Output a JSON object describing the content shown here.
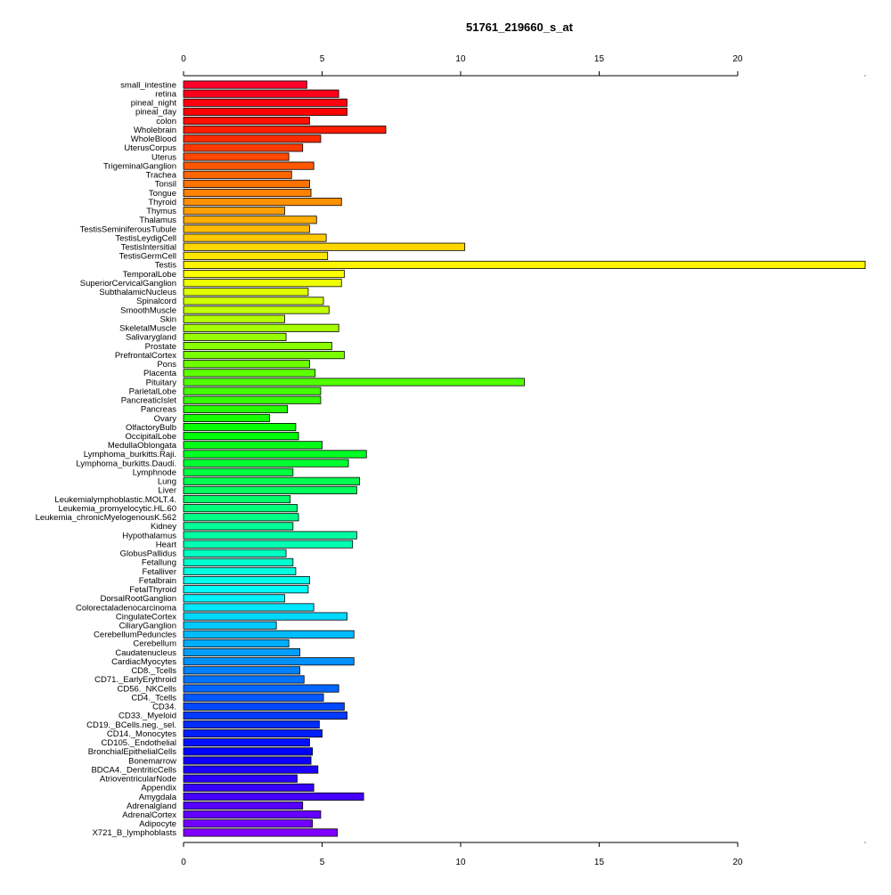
{
  "chart_data": {
    "type": "bar",
    "orientation": "horizontal",
    "title": "51761_219660_s_at",
    "xlabel": "",
    "ylabel": "",
    "xlim": [
      0,
      24.6
    ],
    "x_ticks": [
      0,
      5,
      10,
      15,
      20
    ],
    "grid": false,
    "axis_position": "top-and-bottom",
    "categories": [
      "small_intestine",
      "retina",
      "pineal_night",
      "pineal_day",
      "colon",
      "Wholebrain",
      "WholeBlood",
      "UterusCorpus",
      "Uterus",
      "TrigeminalGanglion",
      "Trachea",
      "Tonsil",
      "Tongue",
      "Thyroid",
      "Thymus",
      "Thalamus",
      "TestisSeminiferousTubule",
      "TestisLeydigCell",
      "TestisIntersitial",
      "TestisGermCell",
      "Testis",
      "TemporalLobe",
      "SuperiorCervicalGanglion",
      "SubthalamicNucleus",
      "Spinalcord",
      "SmoothMuscle",
      "Skin",
      "SkeletalMuscle",
      "Salivarygland",
      "Prostate",
      "PrefrontalCortex",
      "Pons",
      "Placenta",
      "Pituitary",
      "ParietalLobe",
      "PancreaticIslet",
      "Pancreas",
      "Ovary",
      "OlfactoryBulb",
      "OccipitalLobe",
      "MedullaOblongata",
      "Lymphoma_burkitts.Raji.",
      "Lymphoma_burkitts.Daudi.",
      "Lymphnode",
      "Lung",
      "Liver",
      "Leukemialymphoblastic.MOLT.4.",
      "Leukemia_promyelocytic.HL.60",
      "Leukemia_chronicMyelogenousK.562",
      "Kidney",
      "Hypothalamus",
      "Heart",
      "GlobusPallidus",
      "Fetallung",
      "Fetalliver",
      "Fetalbrain",
      "FetalThyroid",
      "DorsalRootGanglion",
      "Colorectaladenocarcinoma",
      "CingulateCortex",
      "CiliaryGanglion",
      "CerebellumPeduncles",
      "Cerebellum",
      "Caudatenucleus",
      "CardiacMyocytes",
      "CD8._Tcells",
      "CD71._EarlyErythroid",
      "CD56._NKCells",
      "CD4._Tcells",
      "CD34.",
      "CD33._Myeloid",
      "CD19._BCells.neg._sel.",
      "CD14._Monocytes",
      "CD105._Endothelial",
      "BronchialEpithelialCells",
      "Bonemarrow",
      "BDCA4._DentriticCells",
      "AtrioventricularNode",
      "Appendix",
      "Amygdala",
      "Adrenalgland",
      "AdrenalCortex",
      "Adipocyte",
      "X721_B_lymphoblasts"
    ],
    "values": [
      4.45,
      5.6,
      5.9,
      5.9,
      4.55,
      7.3,
      4.95,
      4.3,
      3.8,
      4.7,
      3.9,
      4.55,
      4.6,
      5.7,
      3.65,
      4.8,
      4.55,
      5.15,
      10.15,
      5.2,
      24.6,
      5.8,
      5.7,
      4.5,
      5.05,
      5.25,
      3.65,
      5.6,
      3.7,
      5.35,
      5.8,
      4.55,
      4.75,
      12.3,
      4.95,
      4.95,
      3.75,
      3.1,
      4.05,
      4.15,
      5.0,
      6.6,
      5.95,
      3.95,
      6.35,
      6.25,
      3.85,
      4.1,
      4.15,
      3.95,
      6.25,
      6.1,
      3.7,
      3.95,
      4.05,
      4.55,
      4.5,
      3.65,
      4.7,
      5.9,
      3.35,
      6.15,
      3.8,
      4.2,
      6.15,
      4.2,
      4.35,
      5.6,
      5.05,
      5.8,
      5.9,
      4.9,
      5.0,
      4.55,
      4.65,
      4.6,
      4.85,
      4.1,
      4.7,
      6.5,
      4.3,
      4.95,
      4.65,
      5.55
    ]
  }
}
